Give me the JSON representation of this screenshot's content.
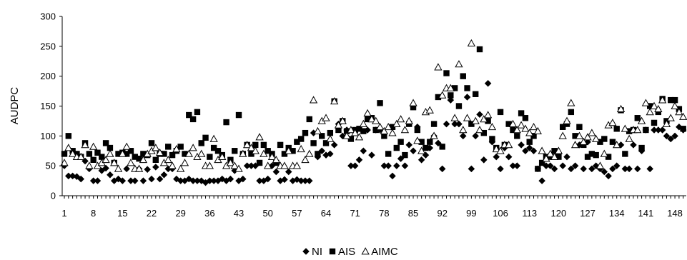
{
  "chart_data": {
    "type": "scatter",
    "ylabel": "AUDPC",
    "xlabel": "",
    "ylim": [
      0,
      300
    ],
    "xlim": [
      1,
      150
    ],
    "y_ticks": [
      "0",
      "50",
      "100",
      "150",
      "200",
      "250",
      "300"
    ],
    "x_ticks": [
      "1",
      "8",
      "15",
      "22",
      "29",
      "36",
      "43",
      "50",
      "57",
      "64",
      "71",
      "78",
      "85",
      "92",
      "99",
      "106",
      "113",
      "120",
      "127",
      "134",
      "141",
      "148"
    ],
    "grid": false,
    "legend_position": "bottom",
    "series": [
      {
        "name": "NI",
        "marker": "diamond",
        "color": "#000000",
        "fill": "#000000",
        "x": [
          1,
          2,
          3,
          4,
          5,
          6,
          7,
          8,
          9,
          10,
          11,
          12,
          13,
          14,
          15,
          16,
          17,
          18,
          19,
          20,
          21,
          22,
          23,
          24,
          25,
          26,
          27,
          28,
          29,
          30,
          31,
          32,
          33,
          34,
          35,
          36,
          37,
          38,
          39,
          40,
          41,
          42,
          43,
          44,
          45,
          46,
          47,
          48,
          49,
          50,
          51,
          52,
          53,
          54,
          55,
          56,
          57,
          58,
          59,
          60,
          61,
          62,
          63,
          64,
          65,
          66,
          67,
          68,
          69,
          70,
          71,
          72,
          73,
          74,
          75,
          76,
          77,
          78,
          79,
          80,
          81,
          82,
          83,
          84,
          85,
          86,
          87,
          88,
          89,
          90,
          91,
          92,
          93,
          94,
          95,
          96,
          97,
          98,
          99,
          100,
          101,
          102,
          103,
          104,
          105,
          106,
          107,
          108,
          109,
          110,
          111,
          112,
          113,
          114,
          115,
          116,
          117,
          118,
          119,
          120,
          121,
          122,
          123,
          124,
          125,
          126,
          127,
          128,
          129,
          130,
          131,
          132,
          133,
          134,
          135,
          136,
          137,
          138,
          139,
          140,
          141,
          142,
          143,
          144,
          145,
          146,
          147,
          148,
          149,
          150
        ],
        "y": [
          50,
          33,
          33,
          32,
          28,
          58,
          45,
          25,
          25,
          42,
          46,
          35,
          25,
          28,
          25,
          45,
          25,
          25,
          45,
          25,
          44,
          28,
          48,
          28,
          35,
          45,
          45,
          28,
          25,
          25,
          28,
          25,
          25,
          25,
          22,
          25,
          25,
          25,
          28,
          25,
          28,
          42,
          25,
          28,
          50,
          50,
          50,
          25,
          25,
          28,
          50,
          40,
          25,
          27,
          40,
          25,
          27,
          25,
          25,
          25,
          105,
          65,
          75,
          68,
          70,
          85,
          120,
          100,
          110,
          50,
          50,
          60,
          75,
          110,
          68,
          110,
          110,
          50,
          50,
          33,
          50,
          62,
          50,
          85,
          75,
          115,
          60,
          68,
          80,
          100,
          88,
          45,
          120,
          160,
          120,
          120,
          100,
          165,
          45,
          100,
          136,
          60,
          188,
          90,
          65,
          45,
          80,
          65,
          50,
          50,
          85,
          75,
          80,
          75,
          45,
          25,
          50,
          50,
          45,
          70,
          50,
          65,
          45,
          50,
          85,
          45,
          90,
          45,
          50,
          45,
          40,
          33,
          45,
          50,
          85,
          45,
          45,
          85,
          45,
          75,
          110,
          45,
          110,
          110,
          110,
          100,
          95,
          100,
          115,
          110
        ]
      },
      {
        "name": "AIS",
        "marker": "square",
        "color": "#000000",
        "fill": "#000000",
        "x": [
          1,
          2,
          3,
          4,
          5,
          6,
          7,
          8,
          9,
          10,
          11,
          12,
          13,
          14,
          15,
          16,
          17,
          18,
          19,
          20,
          21,
          22,
          23,
          24,
          25,
          26,
          27,
          28,
          29,
          30,
          31,
          32,
          33,
          34,
          35,
          36,
          37,
          38,
          39,
          40,
          41,
          42,
          43,
          44,
          45,
          46,
          47,
          48,
          49,
          50,
          51,
          52,
          53,
          54,
          55,
          56,
          57,
          58,
          59,
          60,
          61,
          62,
          63,
          64,
          65,
          66,
          67,
          68,
          69,
          70,
          71,
          72,
          73,
          74,
          75,
          76,
          77,
          78,
          79,
          80,
          81,
          82,
          83,
          84,
          85,
          86,
          87,
          88,
          89,
          90,
          91,
          92,
          93,
          94,
          95,
          96,
          97,
          98,
          99,
          100,
          101,
          102,
          103,
          104,
          105,
          106,
          107,
          108,
          109,
          110,
          111,
          112,
          113,
          114,
          115,
          116,
          117,
          118,
          119,
          120,
          121,
          122,
          123,
          124,
          125,
          126,
          127,
          128,
          129,
          130,
          131,
          132,
          133,
          134,
          135,
          136,
          137,
          138,
          139,
          140,
          141,
          142,
          143,
          144,
          145,
          146,
          147,
          148,
          149,
          150
        ],
        "y": [
          70,
          100,
          75,
          70,
          65,
          88,
          70,
          60,
          72,
          65,
          88,
          80,
          55,
          70,
          72,
          70,
          75,
          65,
          62,
          70,
          68,
          88,
          60,
          70,
          70,
          82,
          68,
          75,
          82,
          70,
          135,
          128,
          140,
          88,
          97,
          65,
          80,
          75,
          68,
          123,
          60,
          75,
          135,
          70,
          85,
          70,
          85,
          55,
          85,
          75,
          70,
          55,
          85,
          70,
          80,
          75,
          90,
          95,
          105,
          128,
          88,
          70,
          100,
          88,
          105,
          158,
          110,
          125,
          108,
          95,
          110,
          112,
          108,
          128,
          130,
          110,
          155,
          100,
          70,
          115,
          80,
          90,
          68,
          120,
          148,
          110,
          90,
          80,
          90,
          120,
          165,
          82,
          205,
          168,
          180,
          150,
          200,
          180,
          120,
          170,
          245,
          105,
          125,
          95,
          80,
          140,
          85,
          120,
          110,
          100,
          138,
          130,
          90,
          100,
          45,
          55,
          65,
          65,
          75,
          65,
          115,
          120,
          140,
          100,
          115,
          85,
          65,
          70,
          68,
          90,
          95,
          65,
          90,
          112,
          143,
          70,
          108,
          110,
          130,
          80,
          110,
          150,
          122,
          140,
          162,
          125,
          160,
          160,
          145,
          112
        ]
      },
      {
        "name": "AIMC",
        "marker": "triangle",
        "color": "#000000",
        "fill": "#ffffff",
        "x": [
          1,
          2,
          3,
          4,
          5,
          6,
          7,
          8,
          9,
          10,
          11,
          12,
          13,
          14,
          15,
          16,
          17,
          18,
          19,
          20,
          21,
          22,
          23,
          24,
          25,
          26,
          27,
          28,
          29,
          30,
          31,
          32,
          33,
          34,
          35,
          36,
          37,
          38,
          39,
          40,
          41,
          42,
          43,
          44,
          45,
          46,
          47,
          48,
          49,
          50,
          51,
          52,
          53,
          54,
          55,
          56,
          57,
          58,
          59,
          60,
          61,
          62,
          63,
          64,
          65,
          66,
          67,
          68,
          69,
          70,
          71,
          72,
          73,
          74,
          75,
          76,
          77,
          78,
          79,
          80,
          81,
          82,
          83,
          84,
          85,
          86,
          87,
          88,
          89,
          90,
          91,
          92,
          93,
          94,
          95,
          96,
          97,
          98,
          99,
          100,
          101,
          102,
          103,
          104,
          105,
          106,
          107,
          108,
          109,
          110,
          111,
          112,
          113,
          114,
          115,
          116,
          117,
          118,
          119,
          120,
          121,
          122,
          123,
          124,
          125,
          126,
          127,
          128,
          129,
          130,
          131,
          132,
          133,
          134,
          135,
          136,
          137,
          138,
          139,
          140,
          141,
          142,
          143,
          144,
          145,
          146,
          147,
          148,
          149,
          150
        ],
        "y": [
          55,
          80,
          70,
          65,
          65,
          85,
          50,
          82,
          50,
          55,
          60,
          70,
          55,
          45,
          70,
          82,
          55,
          45,
          45,
          60,
          70,
          75,
          80,
          72,
          55,
          60,
          50,
          78,
          45,
          55,
          70,
          80,
          65,
          70,
          50,
          50,
          95,
          60,
          65,
          50,
          55,
          50,
          45,
          70,
          85,
          80,
          75,
          98,
          70,
          50,
          65,
          60,
          50,
          50,
          75,
          50,
          50,
          78,
          60,
          70,
          160,
          108,
          125,
          130,
          95,
          158,
          118,
          125,
          100,
          110,
          105,
          98,
          120,
          138,
          128,
          125,
          115,
          108,
          115,
          105,
          120,
          128,
          110,
          125,
          155,
          92,
          75,
          140,
          143,
          100,
          215,
          168,
          180,
          180,
          130,
          220,
          110,
          130,
          255,
          125,
          110,
          128,
          135,
          115,
          78,
          75,
          85,
          85,
          120,
          110,
          118,
          112,
          105,
          115,
          108,
          75,
          62,
          70,
          65,
          75,
          100,
          125,
          155,
          85,
          100,
          90,
          98,
          105,
          95,
          50,
          70,
          118,
          122,
          85,
          145,
          112,
          95,
          110,
          110,
          125,
          155,
          140,
          150,
          145,
          160,
          120,
          130,
          150,
          140,
          132
        ]
      }
    ]
  }
}
